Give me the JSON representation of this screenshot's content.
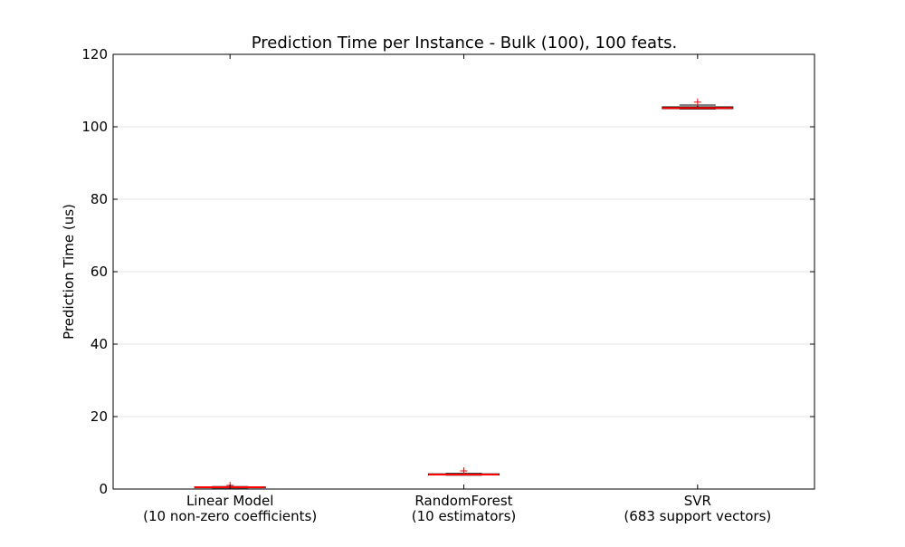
{
  "chart_data": {
    "type": "box",
    "title": "Prediction Time per Instance - Bulk (100), 100 feats.",
    "xlabel": "",
    "ylabel": "Prediction Time (us)",
    "ylim": [
      0,
      120
    ],
    "yticks": [
      0,
      20,
      40,
      60,
      80,
      100,
      120
    ],
    "grid": "horizontal",
    "categories": [
      [
        "Linear Model",
        "(10 non-zero coefficients)"
      ],
      [
        "RandomForest",
        "(10 estimators)"
      ],
      [
        "SVR",
        "(683 support vectors)"
      ]
    ],
    "boxes": [
      {
        "whisker_low": 0.3,
        "q1": 0.4,
        "median": 0.5,
        "q3": 0.6,
        "whisker_high": 0.7,
        "fliers": [
          1.0
        ]
      },
      {
        "whisker_low": 3.8,
        "q1": 3.9,
        "median": 4.0,
        "q3": 4.2,
        "whisker_high": 4.3,
        "fliers": [
          5.0
        ]
      },
      {
        "whisker_low": 104.9,
        "q1": 105.0,
        "median": 105.2,
        "q3": 105.5,
        "whisker_high": 106.0,
        "fliers": [
          106.8
        ]
      }
    ],
    "colors": {
      "box": "#000000",
      "median": "#ff0000",
      "flier": "#ff0000",
      "grid": "#e6e6e6"
    }
  }
}
